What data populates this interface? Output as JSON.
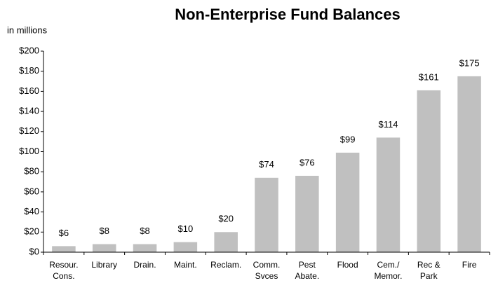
{
  "chart_data": {
    "type": "bar",
    "title": "Non-Enterprise Fund Balances",
    "annotation": "in millions",
    "categories": [
      "Resour. Cons.",
      "Library",
      "Drain.",
      "Maint.",
      "Reclam.",
      "Comm. Svces",
      "Pest Abate.",
      "Flood",
      "Cem./ Memor.",
      "Rec & Park",
      "Fire"
    ],
    "values": [
      6,
      8,
      8,
      10,
      20,
      74,
      76,
      99,
      114,
      161,
      175
    ],
    "value_labels": [
      "$6",
      "$8",
      "$8",
      "$10",
      "$20",
      "$74",
      "$76",
      "$99",
      "$114",
      "$161",
      "$175"
    ],
    "color": "#c0c0c0",
    "ylim": [
      0,
      200
    ],
    "yticks": [
      {
        "value": 0,
        "label": "$0"
      },
      {
        "value": 20,
        "label": "$20"
      },
      {
        "value": 40,
        "label": "$40"
      },
      {
        "value": 60,
        "label": "$60"
      },
      {
        "value": 80,
        "label": "$80"
      },
      {
        "value": 100,
        "label": "$100"
      },
      {
        "value": 120,
        "label": "$120"
      },
      {
        "value": 140,
        "label": "$140"
      },
      {
        "value": 160,
        "label": "$160"
      },
      {
        "value": 180,
        "label": "$180"
      },
      {
        "value": 200,
        "label": "$200"
      }
    ],
    "grid": false
  }
}
